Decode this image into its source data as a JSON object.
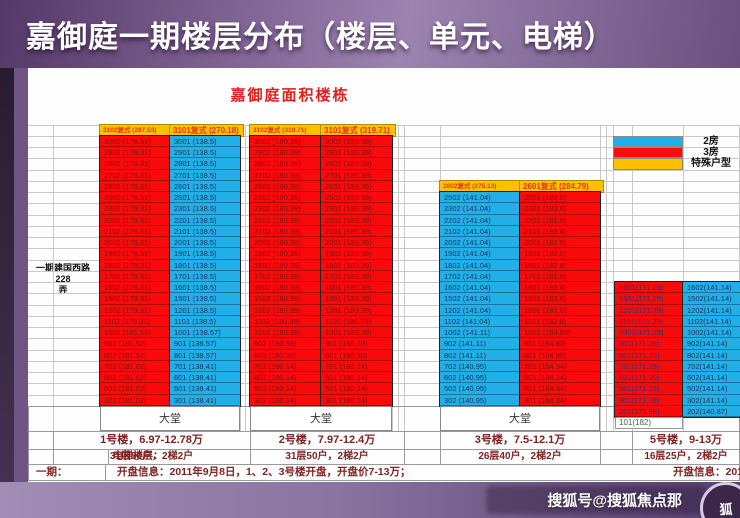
{
  "banner": {
    "title": "嘉御庭一期楼层分布（楼层、单元、电梯）"
  },
  "table": {
    "title": "嘉御庭面积楼栋",
    "left_label": "一期建国西路228\n弄",
    "legend": [
      {
        "label": "2房",
        "color": "#22aee6"
      },
      {
        "label": "3房",
        "color": "#fa0a0a"
      },
      {
        "label": "特殊户型",
        "color": "#ffc000"
      }
    ],
    "header_bg": "#ffc000",
    "buildings": [
      {
        "id": "b1",
        "headers": [
          "3102复式 (287.53)",
          "3101复式 (270.18)"
        ],
        "columns": [
          {
            "bg": "#fa0a0a",
            "fg": "#7c1212",
            "cells": [
              "3002 (179.31)",
              "2902 (179.31)",
              "2802 (179.31)",
              "2702 (179.31)",
              "2602 (179.31)",
              "2502 (179.31)",
              "2302 (179.31)",
              "2202 (179.31)",
              "2102 (179.31)",
              "2002 (179.31)",
              "1902 (179.31)",
              "1802 (179.31)",
              "1702 (179.31)",
              "1602 (179.31)",
              "1502 (179.31)",
              "1202 (179.31)",
              "1102 (179.31)",
              "1002 (181.52)",
              "902 (181.52)",
              "802 (181.52)",
              "702 (181.02)",
              "602 (181.02)",
              "502 (181.02)",
              "302 (181.02)"
            ]
          },
          {
            "bg": "#22aee6",
            "fg": "#17375e",
            "cells": [
              "3001 (138.5)",
              "2901 (138.5)",
              "2801 (138.5)",
              "2701 (138.5)",
              "2601 (138.5)",
              "2501 (138.5)",
              "2301 (138.5)",
              "2201 (138.5)",
              "2101 (138.5)",
              "2001 (138.5)",
              "1901 (138.5)",
              "1801 (138.5)",
              "1701 (138.5)",
              "1601 (138.5)",
              "1501 (138.5)",
              "1201 (138.5)",
              "1101 (138.5)",
              "1001 (138.57)",
              "901 (138.57)",
              "801 (138.57)",
              "701 (138.41)",
              "601 (138.41)",
              "501 (138.41)",
              "301 (138.41)"
            ]
          }
        ],
        "lobby": "大堂",
        "price": "1号楼，6.97-12.78万",
        "elevator": "31层50户，2梯2户"
      },
      {
        "id": "b2",
        "headers": [
          "3102复式 (319.71)",
          "3101复式 (319.71)"
        ],
        "columns": [
          {
            "bg": "#fa0a0a",
            "fg": "#7c1212",
            "cells": [
              "3002 (180.39)",
              "2902 (180.39)",
              "2802 (180.39)",
              "2702 (180.39)",
              "2602 (180.39)",
              "2502 (180.39)",
              "2302 (180.39)",
              "2202 (180.39)",
              "2102 (180.39)",
              "2002 (180.39)",
              "1902 (180.39)",
              "1802 (180.39)",
              "1702 (180.39)",
              "1602 (180.39)",
              "1502 (180.39)",
              "1202 (180.39)",
              "1102 (180.39)",
              "1002 (180.39)",
              "902 (180.39)",
              "802 (180.39)",
              "702 (180.14)",
              "602 (180.14)",
              "502 (180.14)",
              "302 (180.14)"
            ]
          },
          {
            "bg": "#fa0a0a",
            "fg": "#7c1212",
            "cells": [
              "3001 (180.39)",
              "2901 (180.39)",
              "2801 (180.39)",
              "2701 (180.39)",
              "2601 (180.39)",
              "2501 (180.39)",
              "2301 (180.39)",
              "2201 (180.39)",
              "2101 (180.39)",
              "2001 (180.39)",
              "1901 (180.39)",
              "1801 (180.39)",
              "1701 (180.39)",
              "1601 (180.39)",
              "1501 (180.39)",
              "1201 (180.39)",
              "1101 (180.39)",
              "1001 (180.39)",
              "901 (180.39)",
              "801 (180.39)",
              "701 (180.14)",
              "601 (180.14)",
              "501 (180.14)",
              "301 (180.14)"
            ]
          }
        ],
        "lobby": "大堂",
        "price": "2号楼，7.97-12.4万",
        "elevator": "31层50户，2梯2户"
      },
      {
        "id": "b3",
        "headers": [
          "2602复式 (275.13)",
          "2601复式 (284.79)"
        ],
        "columns": [
          {
            "bg": "#22aee6",
            "fg": "#17375e",
            "cells": [
              "2502 (141.04)",
              "2302 (141.04)",
              "2202 (141.04)",
              "2102 (141.04)",
              "2002 (141.04)",
              "1902 (141.04)",
              "1802 (141.04)",
              "1702 (141.04)",
              "1602 (141.04)",
              "1502 (141.04)",
              "1202 (141.04)",
              "1102 (141.04)",
              "1002 (141.11)",
              "902 (141.11)",
              "802 (141.11)",
              "702 (140.95)",
              "602 (140.95)",
              "502 (140.95)",
              "302 (140.95)"
            ]
          },
          {
            "bg": "#fa0a0a",
            "fg": "#7c1212",
            "cells": [
              "2501 (182.6)",
              "2301 (182.6)",
              "2201 (182.6)",
              "2101 (182.6)",
              "2001 (182.6)",
              "1901 (182.6)",
              "1801 (182.6)",
              "1701 (182.6)",
              "1601 (182.6)",
              "1501 (182.6)",
              "1201 (182.6)",
              "1101 (182.6)",
              "1001 (184.85)",
              "901 (184.85)",
              "801 (184.85)",
              "701 (184.34)",
              "601 (184.34)",
              "501 (184.34)",
              "301 (184.34)"
            ]
          }
        ],
        "lobby": null,
        "price": "3号楼，7.5-12.1万",
        "elevator": "26层40户，2梯2户"
      },
      {
        "id": "b5",
        "headers": [],
        "columns": [
          {
            "bg": "#fa0a0a",
            "fg": "#33336e",
            "cells": [
              "1601(171.29)",
              "1501(171.29)",
              "1201(171.29)",
              "1101(171.29)",
              "1001(171.29)",
              "901(171.29)",
              "801(171.29)",
              "701(171.29)",
              "601(171.29)",
              "501(171.29)",
              "301(171.29)",
              "201(176.98)"
            ]
          },
          {
            "bg": "#22aee6",
            "fg": "#17375e",
            "cells": [
              "1602(141.14)",
              "1502(141.14)",
              "1202(141.14)",
              "1102(141.14)",
              "1002(141.14)",
              "902(141.14)",
              "802(141.14)",
              "702(141.14)",
              "602(141.14)",
              "502(141.14)",
              "302(141.14)",
              "202(140.87)"
            ]
          }
        ],
        "lobby": null,
        "price": "5号楼，9-13万",
        "elevator": "16层25户，2梯2户"
      }
    ],
    "lobby_b3": "大堂",
    "unit_101": "101(182)",
    "footer": {
      "elevator_label": "电梯楼层：",
      "phase_label": "一期：",
      "opening_info": "开盘信息：2011年9月8日，1、2、3号楼开盘，开盘价7-13万；",
      "opening_info_right": "开盘信息：201"
    }
  },
  "watermark": {
    "text": "搜狐号@搜狐焦点那",
    "badge": "狐"
  }
}
